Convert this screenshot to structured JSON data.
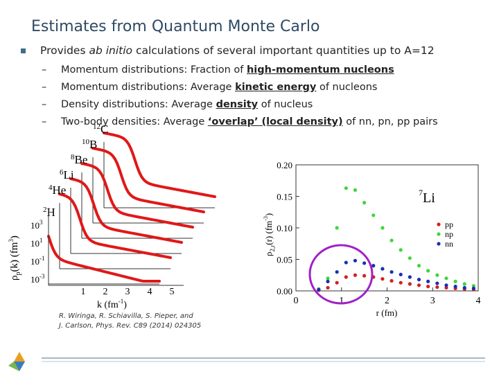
{
  "header": {
    "title": "Estimates from Quantum Monte Carlo"
  },
  "bullet": [
    {
      "text": "Provides "
    },
    {
      "text": "ab initio",
      "style": "italic"
    },
    {
      "text": " calculations of several important quantities up to A=12"
    }
  ],
  "sub_items": [
    [
      {
        "text": "Momentum distributions: Fraction of "
      },
      {
        "text": "high-momentum nucleons",
        "style": "underline"
      }
    ],
    [
      {
        "text": "Momentum distributions: Average "
      },
      {
        "text": "kinetic energy",
        "style": "underline"
      },
      {
        "text": " of nucleons"
      }
    ],
    [
      {
        "text": "Density distributions: Average "
      },
      {
        "text": "density",
        "style": "underline"
      },
      {
        "text": " of nucleus"
      }
    ],
    [
      {
        "text": "Two-body densities: Average "
      },
      {
        "text": "‘overlap’ (local density)",
        "style": "underline"
      },
      {
        "text": " of nn, pn, pp pairs"
      }
    ]
  ],
  "left_plot": {
    "nuclei": [
      {
        "mass": "2",
        "symbol": "H"
      },
      {
        "mass": "4",
        "symbol": "He"
      },
      {
        "mass": "6",
        "symbol": "Li"
      },
      {
        "mass": "8",
        "symbol": "Be"
      },
      {
        "mass": "10",
        "symbol": "B"
      },
      {
        "mass": "12",
        "symbol": "C"
      }
    ],
    "y_label": {
      "main": "ρ",
      "sub": "p",
      "rest": "(k) (fm",
      "exp": "3",
      "close": ")"
    },
    "yticks": [
      {
        "base": "10",
        "exp": "3"
      },
      {
        "base": "10",
        "exp": "1"
      },
      {
        "base": "10",
        "exp": "-1"
      },
      {
        "base": "10",
        "exp": "-3"
      }
    ],
    "xticks": [
      1,
      2,
      3,
      4,
      5
    ],
    "x_label": {
      "main": "k (fm",
      "exp": "-1",
      "close": ")"
    },
    "citation": [
      "R. Wiringa, R. Schiavilla, S. Pieper, and",
      "J. Carlson, Phys. Rev. C89 (2014) 024305"
    ]
  },
  "right_plot": {
    "type": "scatter",
    "nucleus": {
      "mass": "7",
      "symbol": "Li"
    },
    "y_label": {
      "main": "ρ",
      "sub": "2,r",
      "rest": "(r) (fm",
      "exp": "-3",
      "close": ")"
    },
    "x_label": "r (fm)",
    "xlim": [
      0,
      4
    ],
    "xticks": [
      0,
      1,
      2,
      3,
      4
    ],
    "ylim": [
      0,
      0.2
    ],
    "yticks": [
      {
        "value": 0,
        "label": "0.00"
      },
      {
        "value": 0.05,
        "label": "0.05"
      },
      {
        "value": 0.1,
        "label": "0.10"
      },
      {
        "value": 0.15,
        "label": "0.15"
      },
      {
        "value": 0.2,
        "label": "0.20"
      }
    ],
    "x": [
      0.5,
      0.7,
      0.9,
      1.1,
      1.3,
      1.5,
      1.7,
      1.9,
      2.1,
      2.3,
      2.5,
      2.7,
      2.9,
      3.1,
      3.3,
      3.5,
      3.7,
      3.9
    ],
    "series": [
      {
        "name": "pp",
        "color": "#d42020",
        "values": [
          0.001,
          0.005,
          0.013,
          0.022,
          0.025,
          0.024,
          0.022,
          0.019,
          0.016,
          0.013,
          0.011,
          0.009,
          0.007,
          0.006,
          0.005,
          0.004,
          0.003,
          0.002
        ]
      },
      {
        "name": "np",
        "color": "#3ed63e",
        "values": [
          0.003,
          0.02,
          0.1,
          0.163,
          0.16,
          0.14,
          0.12,
          0.1,
          0.08,
          0.065,
          0.052,
          0.04,
          0.032,
          0.025,
          0.02,
          0.015,
          0.011,
          0.008
        ]
      },
      {
        "name": "nn",
        "color": "#1a2fb0",
        "values": [
          0.002,
          0.015,
          0.03,
          0.045,
          0.048,
          0.044,
          0.04,
          0.035,
          0.03,
          0.026,
          0.022,
          0.018,
          0.015,
          0.012,
          0.009,
          0.007,
          0.005,
          0.004
        ]
      }
    ]
  }
}
